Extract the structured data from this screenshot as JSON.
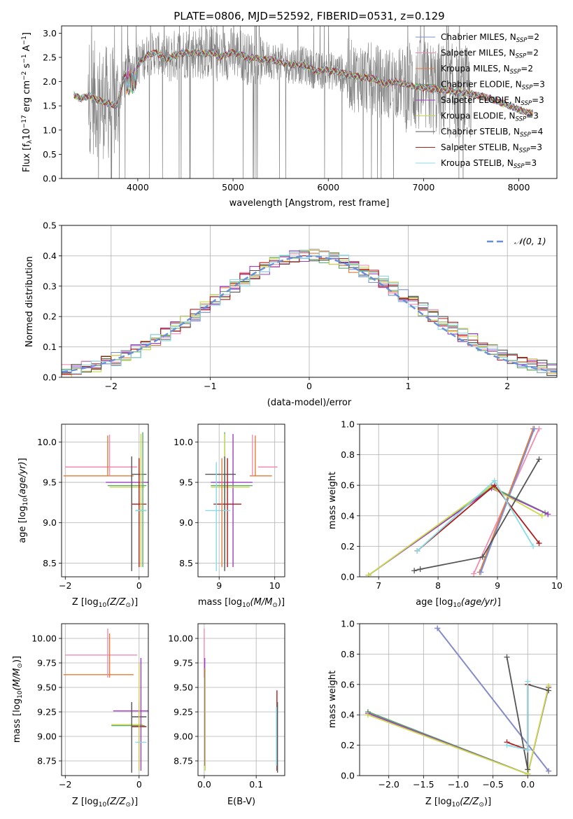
{
  "figure": {
    "title": "PLATE=0806, MJD=52592, FIBERID=0531, z=0.129",
    "legend": [
      {
        "name": "Chabrier MILES",
        "sub": "SSP",
        "n": "2",
        "color": "#7b8fd6"
      },
      {
        "name": "Salpeter MILES",
        "sub": "SSP",
        "n": "2",
        "color": "#f08cb0"
      },
      {
        "name": "Kroupa MILES",
        "sub": "SSP",
        "n": "2",
        "color": "#e07b39"
      },
      {
        "name": "Chabrier ELODIE",
        "sub": "SSP",
        "n": "3",
        "color": "#5cab68"
      },
      {
        "name": "Salpeter ELODIE",
        "sub": "SSP",
        "n": "3",
        "color": "#9b3fbf"
      },
      {
        "name": "Kroupa ELODIE",
        "sub": "SSP",
        "n": "3",
        "color": "#c8d94a"
      },
      {
        "name": "Chabrier STELIB",
        "sub": "SSP",
        "n": "4",
        "color": "#555555"
      },
      {
        "name": "Salpeter STELIB",
        "sub": "SSP",
        "n": "3",
        "color": "#b01c1c"
      },
      {
        "name": "Kroupa STELIB",
        "sub": "SSP",
        "n": "3",
        "color": "#8adbe6"
      }
    ],
    "normal_legend": "𝒩(0, 1)",
    "normal_color": "#6a8fd8",
    "data_color": "#808080"
  },
  "chart_data": [
    {
      "id": "spectrum",
      "type": "line",
      "xlabel": "wavelength [Angstrom, rest frame]",
      "ylabel_prefix": "Flux [f",
      "ylabel_sub": "λ",
      "ylabel_mid": "10",
      "ylabel_exp1": "−17",
      "ylabel_text": " erg cm",
      "ylabel_exp2": "−2",
      "ylabel_text2": " s",
      "ylabel_exp3": "−1",
      "ylabel_text3": " A",
      "ylabel_exp4": "−1",
      "ylabel_end": "]",
      "xlim": [
        3200,
        8400
      ],
      "ylim": [
        0,
        3.15
      ],
      "xticks": [
        4000,
        5000,
        6000,
        7000,
        8000
      ],
      "yticks": [
        0.0,
        0.5,
        1.0,
        1.5,
        2.0,
        2.5,
        3.0
      ],
      "model_continuum": [
        [
          3330,
          1.72
        ],
        [
          3400,
          1.65
        ],
        [
          3500,
          1.7
        ],
        [
          3600,
          1.6
        ],
        [
          3700,
          1.55
        ],
        [
          3780,
          1.5
        ],
        [
          3830,
          1.9
        ],
        [
          3900,
          2.3
        ],
        [
          3960,
          2.2
        ],
        [
          4000,
          2.35
        ],
        [
          4100,
          2.55
        ],
        [
          4200,
          2.6
        ],
        [
          4300,
          2.45
        ],
        [
          4400,
          2.55
        ],
        [
          4500,
          2.6
        ],
        [
          4600,
          2.6
        ],
        [
          4700,
          2.58
        ],
        [
          4800,
          2.6
        ],
        [
          4860,
          2.5
        ],
        [
          4900,
          2.55
        ],
        [
          5000,
          2.6
        ],
        [
          5100,
          2.55
        ],
        [
          5170,
          2.45
        ],
        [
          5200,
          2.5
        ],
        [
          5300,
          2.45
        ],
        [
          5400,
          2.45
        ],
        [
          5500,
          2.4
        ],
        [
          5600,
          2.35
        ],
        [
          5700,
          2.35
        ],
        [
          5800,
          2.3
        ],
        [
          5890,
          2.2
        ],
        [
          5950,
          2.25
        ],
        [
          6100,
          2.2
        ],
        [
          6300,
          2.1
        ],
        [
          6500,
          2.05
        ],
        [
          6563,
          1.95
        ],
        [
          6700,
          2.0
        ],
        [
          6900,
          1.9
        ],
        [
          7100,
          1.85
        ],
        [
          7300,
          1.8
        ],
        [
          7500,
          1.75
        ],
        [
          7700,
          1.65
        ],
        [
          7900,
          1.5
        ],
        [
          8100,
          1.35
        ]
      ]
    },
    {
      "id": "residuals",
      "type": "step",
      "xlabel": "(data-model)/error",
      "ylabel": "Normed distribution",
      "xlim": [
        -2.5,
        2.5
      ],
      "ylim": [
        0,
        0.5
      ],
      "xticks": [
        -2,
        -1,
        0,
        1,
        2
      ],
      "yticks": [
        0.0,
        0.1,
        0.2,
        0.3,
        0.4,
        0.5
      ],
      "bin_width": 0.1
    },
    {
      "id": "age_Z",
      "type": "errorbar",
      "xlabel_text": "Z [log",
      "xlabel_sub": "10",
      "xlabel_math": "(Z/Z",
      "xlabel_sub2": "⊙",
      "xlabel_end": ")]",
      "ylabel_text": "age  [log",
      "ylabel_sub": "10",
      "ylabel_math": "(age/yr)",
      "ylabel_end": "]",
      "xlim": [
        -2.1,
        0.25
      ],
      "ylim": [
        8.33,
        10.22
      ],
      "xticks": [
        -2,
        0
      ],
      "yticks": [
        8.5,
        9.0,
        9.5,
        10.0
      ],
      "bars": [
        {
          "x": -1.0,
          "y": 9.69,
          "xl": -2.0,
          "xh": -0.05,
          "yl": 9.69,
          "yh": 9.69,
          "c": "#f08cb0"
        },
        {
          "x": -1.0,
          "y": 9.58,
          "xl": -2.05,
          "xh": -0.15,
          "yl": 9.58,
          "yh": 9.58,
          "c": "#e07b39"
        },
        {
          "x": -0.85,
          "y": 9.6,
          "xl": -0.85,
          "xh": -0.85,
          "yl": 9.58,
          "yh": 10.08,
          "c": "#e07b39"
        },
        {
          "x": -0.8,
          "y": 9.6,
          "xl": -0.8,
          "xh": -0.8,
          "yl": 9.58,
          "yh": 10.09,
          "c": "#f08cb0"
        },
        {
          "x": -0.1,
          "y": 9.5,
          "xl": -0.9,
          "xh": 0.25,
          "yl": 9.5,
          "yh": 9.5,
          "c": "#9b3fbf"
        },
        {
          "x": -0.1,
          "y": 9.46,
          "xl": -0.85,
          "xh": 0.2,
          "yl": 9.46,
          "yh": 9.46,
          "c": "#5cab68"
        },
        {
          "x": -0.1,
          "y": 9.44,
          "xl": -0.8,
          "xh": 0.15,
          "yl": 9.44,
          "yh": 9.44,
          "c": "#c8d94a"
        },
        {
          "x": -0.2,
          "y": 9.6,
          "xl": -0.2,
          "xh": 0.2,
          "yl": 8.4,
          "yh": 9.82,
          "c": "#555555"
        },
        {
          "x": 0.0,
          "y": 9.23,
          "xl": -0.2,
          "xh": 0.2,
          "yl": 8.45,
          "yh": 9.8,
          "c": "#b01c1c"
        },
        {
          "x": 0.05,
          "y": 9.15,
          "xl": -0.1,
          "xh": 0.2,
          "yl": 8.45,
          "yh": 10.1,
          "c": "#c8d94a"
        },
        {
          "x": 0.1,
          "y": 9.15,
          "xl": -0.1,
          "xh": 0.2,
          "yl": 8.45,
          "yh": 10.12,
          "c": "#5cab68"
        },
        {
          "x": 0.0,
          "y": 9.15,
          "xl": -0.1,
          "xh": 0.2,
          "yl": 9.15,
          "yh": 9.15,
          "c": "#8adbe6"
        }
      ]
    },
    {
      "id": "age_mass",
      "type": "errorbar",
      "xlabel_text": "mass [log",
      "xlabel_sub": "10",
      "xlabel_math": "(M/M",
      "xlabel_sub2": "⊙",
      "xlabel_end": ")]",
      "xlim": [
        8.62,
        10.18
      ],
      "ylim": [
        8.33,
        10.22
      ],
      "xticks": [
        9,
        10
      ],
      "yticks": [
        8.5,
        9.0,
        9.5,
        10.0
      ],
      "bars": [
        {
          "x": 9.7,
          "y": 9.69,
          "xl": 9.7,
          "xh": 10.05,
          "yl": 9.69,
          "yh": 9.69,
          "c": "#f08cb0"
        },
        {
          "x": 9.65,
          "y": 9.58,
          "xl": 9.55,
          "xh": 9.95,
          "yl": 9.58,
          "yh": 10.08,
          "c": "#e07b39"
        },
        {
          "x": 9.6,
          "y": 9.6,
          "xl": 9.6,
          "xh": 9.6,
          "yl": 9.58,
          "yh": 10.09,
          "c": "#f08cb0"
        },
        {
          "x": 9.25,
          "y": 9.5,
          "xl": 8.85,
          "xh": 9.6,
          "yl": 8.45,
          "yh": 10.1,
          "c": "#9b3fbf"
        },
        {
          "x": 9.1,
          "y": 9.46,
          "xl": 8.85,
          "xh": 9.6,
          "yl": 8.5,
          "yh": 10.12,
          "c": "#5cab68"
        },
        {
          "x": 9.1,
          "y": 9.44,
          "xl": 8.85,
          "xh": 9.55,
          "yl": 8.5,
          "yh": 10.1,
          "c": "#c8d94a"
        },
        {
          "x": 9.1,
          "y": 9.6,
          "xl": 8.75,
          "xh": 9.3,
          "yl": 8.4,
          "yh": 9.82,
          "c": "#555555"
        },
        {
          "x": 9.15,
          "y": 9.23,
          "xl": 8.9,
          "xh": 9.4,
          "yl": 8.45,
          "yh": 9.8,
          "c": "#b01c1c"
        },
        {
          "x": 8.95,
          "y": 9.15,
          "xl": 8.75,
          "xh": 9.2,
          "yl": 8.4,
          "yh": 9.75,
          "c": "#8adbe6"
        },
        {
          "x": 9.05,
          "y": 9.5,
          "xl": 9.05,
          "xh": 9.05,
          "yl": 8.45,
          "yh": 9.8,
          "c": "#e07b39"
        }
      ]
    },
    {
      "id": "weight_age",
      "type": "line",
      "xlabel_text": "age  [log",
      "xlabel_sub": "10",
      "xlabel_math": "(age/yr)",
      "xlabel_end": "]",
      "ylabel": "mass weight",
      "xlim": [
        6.68,
        10.0
      ],
      "ylim": [
        0,
        1.0
      ],
      "xticks": [
        7,
        8,
        9,
        10
      ],
      "yticks": [
        0.0,
        0.2,
        0.4,
        0.6,
        0.8,
        1.0
      ],
      "series": [
        {
          "c": "#f08cb0",
          "pts": [
            [
              8.6,
              0.02
            ],
            [
              9.7,
              0.97
            ]
          ]
        },
        {
          "c": "#e07b39",
          "pts": [
            [
              8.7,
              0.03
            ],
            [
              9.6,
              0.97
            ]
          ]
        },
        {
          "c": "#7b8fd6",
          "pts": [
            [
              8.72,
              0.03
            ],
            [
              9.62,
              0.97
            ]
          ]
        },
        {
          "c": "#5cab68",
          "pts": [
            [
              6.83,
              0.01
            ],
            [
              8.9,
              0.59
            ],
            [
              9.8,
              0.42
            ]
          ]
        },
        {
          "c": "#9b3fbf",
          "pts": [
            [
              6.83,
              0.01
            ],
            [
              8.9,
              0.58
            ],
            [
              9.85,
              0.41
            ]
          ]
        },
        {
          "c": "#c8d94a",
          "pts": [
            [
              6.83,
              0.01
            ],
            [
              8.88,
              0.59
            ],
            [
              9.75,
              0.4
            ]
          ]
        },
        {
          "c": "#555555",
          "pts": [
            [
              7.6,
              0.04
            ],
            [
              7.7,
              0.05
            ],
            [
              8.75,
              0.13
            ],
            [
              9.7,
              0.77
            ]
          ]
        },
        {
          "c": "#b01c1c",
          "pts": [
            [
              7.65,
              0.17
            ],
            [
              8.95,
              0.6
            ],
            [
              9.7,
              0.22
            ]
          ]
        },
        {
          "c": "#8adbe6",
          "pts": [
            [
              7.65,
              0.17
            ],
            [
              8.95,
              0.63
            ],
            [
              9.6,
              0.2
            ]
          ]
        }
      ]
    },
    {
      "id": "mass_Z",
      "type": "errorbar",
      "xlabel_text": "Z [log",
      "xlabel_sub": "10",
      "xlabel_math": "(Z/Z",
      "xlabel_sub2": "⊙",
      "xlabel_end": ")]",
      "ylabel_text": "mass [log",
      "ylabel_sub": "10",
      "ylabel_math": "(M/M",
      "ylabel_sub2": "⊙",
      "ylabel_end": ")]",
      "xlim": [
        -2.1,
        0.25
      ],
      "ylim": [
        8.6,
        10.15
      ],
      "xticks": [
        -2,
        0
      ],
      "yticks": [
        8.75,
        9.0,
        9.25,
        9.5,
        9.75,
        10.0
      ],
      "bars": [
        {
          "x": -1.0,
          "y": 9.83,
          "xl": -2.0,
          "xh": -0.05,
          "yl": 9.83,
          "yh": 9.83,
          "c": "#f08cb0"
        },
        {
          "x": -1.0,
          "y": 9.63,
          "xl": -2.05,
          "xh": -0.15,
          "yl": 9.63,
          "yh": 9.63,
          "c": "#e07b39"
        },
        {
          "x": -0.85,
          "y": 9.65,
          "xl": -0.85,
          "xh": -0.85,
          "yl": 9.6,
          "yh": 10.1,
          "c": "#f08cb0"
        },
        {
          "x": -0.8,
          "y": 9.65,
          "xl": -0.8,
          "xh": -0.8,
          "yl": 9.6,
          "yh": 10.05,
          "c": "#e07b39"
        },
        {
          "x": -0.1,
          "y": 9.26,
          "xl": -0.7,
          "xh": 0.25,
          "yl": 9.26,
          "yh": 9.26,
          "c": "#9b3fbf"
        },
        {
          "x": -0.1,
          "y": 9.11,
          "xl": -0.75,
          "xh": 0.15,
          "yl": 9.11,
          "yh": 9.11,
          "c": "#5cab68"
        },
        {
          "x": -0.1,
          "y": 9.12,
          "xl": -0.75,
          "xh": 0.1,
          "yl": 9.12,
          "yh": 9.12,
          "c": "#c8d94a"
        },
        {
          "x": -0.2,
          "y": 9.2,
          "xl": -0.2,
          "xh": 0.2,
          "yl": 8.63,
          "yh": 9.35,
          "c": "#555555"
        },
        {
          "x": 0.0,
          "y": 9.1,
          "xl": -0.2,
          "xh": 0.2,
          "yl": 8.65,
          "yh": 9.35,
          "c": "#b01c1c"
        },
        {
          "x": 0.05,
          "y": 9.25,
          "xl": 0.05,
          "xh": 0.05,
          "yl": 8.65,
          "yh": 9.8,
          "c": "#9b3fbf"
        },
        {
          "x": 0.0,
          "y": 9.0,
          "xl": 0.0,
          "xh": 0.0,
          "yl": 8.65,
          "yh": 9.75,
          "c": "#c8d94a"
        },
        {
          "x": 0.05,
          "y": 8.94,
          "xl": -0.1,
          "xh": 0.2,
          "yl": 8.94,
          "yh": 8.94,
          "c": "#8adbe6"
        }
      ]
    },
    {
      "id": "mass_ebv",
      "type": "errorbar",
      "xlabel": "E(B-V)",
      "xlim": [
        -0.012,
        0.155
      ],
      "ylim": [
        8.6,
        10.15
      ],
      "xticks": [
        0.0,
        0.1
      ],
      "yticks": [
        8.75,
        9.0,
        9.25,
        9.5,
        9.75,
        10.0
      ],
      "bars": [
        {
          "x": 0.0,
          "y": 9.9,
          "xl": 0.0,
          "xh": 0.0,
          "yl": 9.6,
          "yh": 10.1,
          "c": "#f08cb0"
        },
        {
          "x": 0.001,
          "y": 9.5,
          "xl": 0.001,
          "xh": 0.001,
          "yl": 8.7,
          "yh": 9.8,
          "c": "#9b3fbf"
        },
        {
          "x": 0.002,
          "y": 9.2,
          "xl": 0.002,
          "xh": 0.002,
          "yl": 8.65,
          "yh": 9.7,
          "c": "#c8d94a"
        },
        {
          "x": 0.14,
          "y": 9.1,
          "xl": 0.14,
          "xh": 0.14,
          "yl": 8.65,
          "yh": 9.47,
          "c": "#b01c1c"
        },
        {
          "x": 0.141,
          "y": 9.0,
          "xl": 0.141,
          "xh": 0.141,
          "yl": 8.63,
          "yh": 9.35,
          "c": "#555555"
        },
        {
          "x": 0.139,
          "y": 9.0,
          "xl": 0.139,
          "xh": 0.139,
          "yl": 8.7,
          "yh": 9.3,
          "c": "#8adbe6"
        }
      ]
    },
    {
      "id": "weight_Z",
      "type": "line",
      "xlabel_text": "Z [log",
      "xlabel_sub": "10",
      "xlabel_math": "(Z/Z",
      "xlabel_sub2": "⊙",
      "xlabel_end": ")]",
      "ylabel": "mass weight",
      "xlim": [
        -2.42,
        0.42
      ],
      "ylim": [
        0,
        1.0
      ],
      "xticks": [
        -2.0,
        -1.5,
        -1.0,
        -0.5,
        0.0
      ],
      "yticks": [
        0.0,
        0.2,
        0.4,
        0.6,
        0.8,
        1.0
      ],
      "series": [
        {
          "c": "#f08cb0",
          "pts": [
            [
              -1.3,
              0.97
            ],
            [
              0.3,
              0.03
            ]
          ]
        },
        {
          "c": "#e07b39",
          "pts": [
            [
              -1.3,
              0.97
            ],
            [
              0.3,
              0.03
            ]
          ]
        },
        {
          "c": "#7b8fd6",
          "pts": [
            [
              -1.3,
              0.97
            ],
            [
              0.3,
              0.03
            ]
          ]
        },
        {
          "c": "#5cab68",
          "pts": [
            [
              -2.3,
              0.42
            ],
            [
              0.0,
              0.01
            ],
            [
              0.3,
              0.58
            ]
          ]
        },
        {
          "c": "#9b3fbf",
          "pts": [
            [
              -2.3,
              0.41
            ],
            [
              0.0,
              0.01
            ],
            [
              0.3,
              0.58
            ]
          ]
        },
        {
          "c": "#c8d94a",
          "pts": [
            [
              -2.3,
              0.4
            ],
            [
              0.0,
              0.01
            ],
            [
              0.3,
              0.59
            ]
          ]
        },
        {
          "c": "#555555",
          "pts": [
            [
              -0.3,
              0.78
            ],
            [
              0.0,
              0.04
            ],
            [
              0.0,
              0.6
            ],
            [
              0.3,
              0.56
            ]
          ]
        },
        {
          "c": "#b01c1c",
          "pts": [
            [
              -0.3,
              0.22
            ],
            [
              0.0,
              0.17
            ],
            [
              0.0,
              0.6
            ]
          ]
        },
        {
          "c": "#8adbe6",
          "pts": [
            [
              -0.3,
              0.2
            ],
            [
              0.0,
              0.17
            ],
            [
              0.0,
              0.62
            ]
          ]
        }
      ]
    }
  ]
}
